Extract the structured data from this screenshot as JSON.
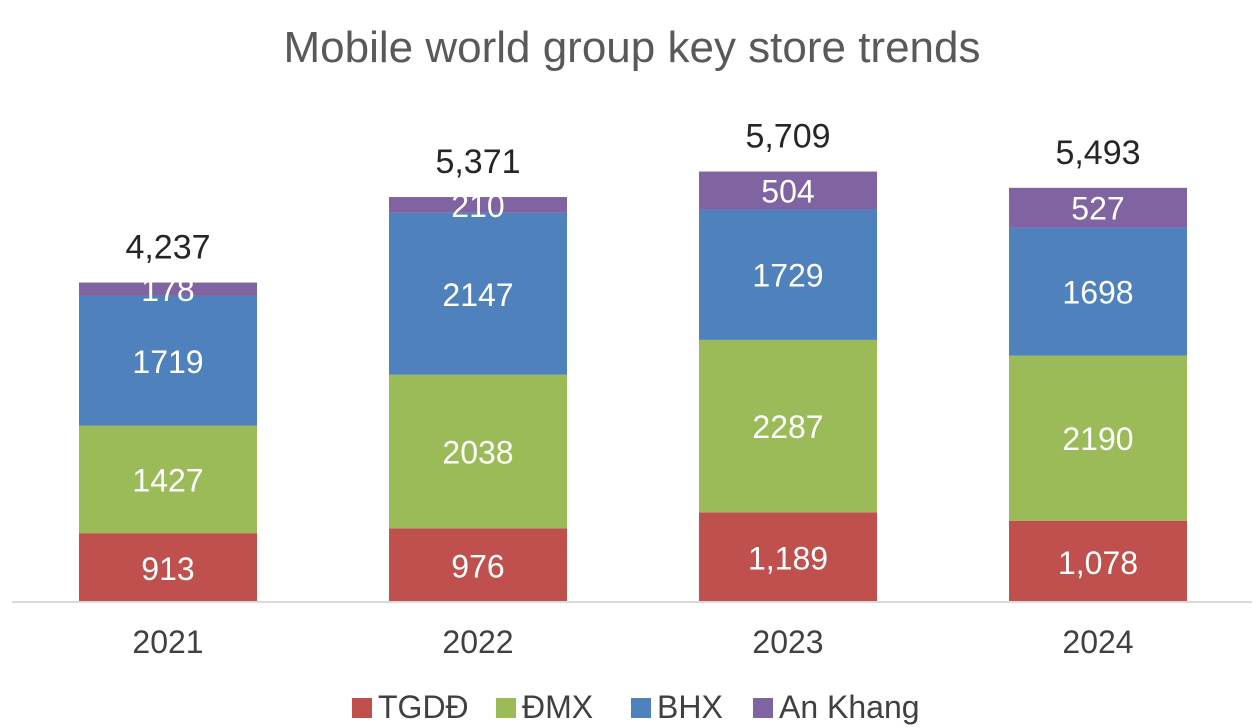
{
  "chart_data": {
    "type": "bar",
    "stacked": true,
    "title": "Mobile world group key store trends",
    "categories": [
      "2021",
      "2022",
      "2023",
      "2024"
    ],
    "series": [
      {
        "name": "TGDĐ",
        "color": "#c0504d",
        "values": [
          913,
          976,
          1189,
          1078
        ],
        "labels": [
          "913",
          "976",
          "1,189",
          "1,078"
        ]
      },
      {
        "name": "ĐMX",
        "color": "#9bbb59",
        "values": [
          1427,
          2038,
          2287,
          2190
        ],
        "labels": [
          "1427",
          "2038",
          "2287",
          "2190"
        ]
      },
      {
        "name": "BHX",
        "color": "#4f81bd",
        "values": [
          1719,
          2147,
          1729,
          1698
        ],
        "labels": [
          "1719",
          "2147",
          "1729",
          "1698"
        ]
      },
      {
        "name": "An Khang",
        "color": "#8064a2",
        "values": [
          178,
          210,
          504,
          527
        ],
        "labels": [
          "178",
          "210",
          "504",
          "527"
        ]
      }
    ],
    "totals": [
      "4,237",
      "5,371",
      "5,709",
      "5,493"
    ],
    "legend_position": "bottom",
    "grid": false,
    "axis_color": "#d9d9d9"
  }
}
